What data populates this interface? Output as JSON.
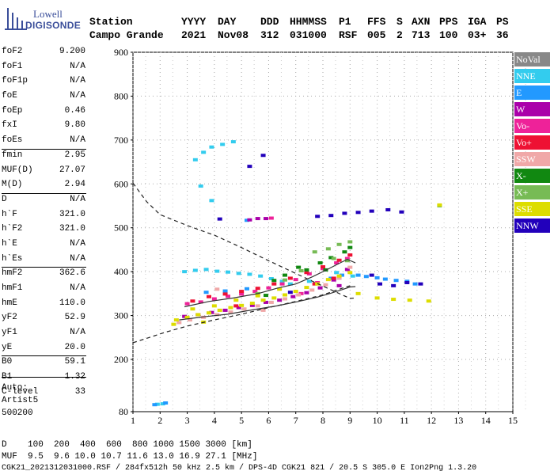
{
  "logo": {
    "line1": "Lowell",
    "line2": "DIGISONDE"
  },
  "header": {
    "row1": [
      "Station",
      "YYYY",
      "DAY",
      "DDD",
      "HHMMSS",
      "P1",
      "FFS",
      "S",
      "AXN",
      "PPS",
      "IGA",
      "PS"
    ],
    "row2": [
      "Campo Grande",
      "2021",
      "Nov08",
      "312",
      "031000",
      "RSF",
      "005",
      "2",
      "713",
      "100",
      "03+",
      "36"
    ]
  },
  "params": [
    {
      "label": "foF2",
      "value": "9.200"
    },
    {
      "label": "foF1",
      "value": "N/A"
    },
    {
      "label": "foF1p",
      "value": "N/A"
    },
    {
      "label": "foE",
      "value": "N/A"
    },
    {
      "label": "foEp",
      "value": "0.46"
    },
    {
      "label": "fxI",
      "value": "9.80"
    },
    {
      "label": "foEs",
      "value": "N/A"
    },
    {
      "label": "fmin",
      "value": "2.95"
    },
    {
      "label": "MUF(D)",
      "value": "27.07"
    },
    {
      "label": "M(D)",
      "value": "2.94"
    },
    {
      "label": "D",
      "value": "N/A"
    },
    {
      "label": "h`F",
      "value": "321.0"
    },
    {
      "label": "h`F2",
      "value": "321.0"
    },
    {
      "label": "h`E",
      "value": "N/A"
    },
    {
      "label": "h`Es",
      "value": "N/A"
    },
    {
      "label": "hmF2",
      "value": "362.6"
    },
    {
      "label": "hmF1",
      "value": "N/A"
    },
    {
      "label": "hmE",
      "value": "110.0"
    },
    {
      "label": "yF2",
      "value": "52.9"
    },
    {
      "label": "yF1",
      "value": "N/A"
    },
    {
      "label": "yE",
      "value": "20.0"
    },
    {
      "label": "B0",
      "value": "59.1"
    },
    {
      "label": "B1",
      "value": "1.32"
    },
    {
      "label": "C-level",
      "value": "33"
    }
  ],
  "auto": [
    "Auto:",
    "Artist5",
    "500200"
  ],
  "legend": [
    {
      "label": "NoVal",
      "color": "#888888"
    },
    {
      "label": "NNE",
      "color": "#33ccee"
    },
    {
      "label": "E",
      "color": "#2299ff"
    },
    {
      "label": "W",
      "color": "#aa00aa"
    },
    {
      "label": "Vo-",
      "color": "#ee2299"
    },
    {
      "label": "Vo+",
      "color": "#ee1133"
    },
    {
      "label": "SSW",
      "color": "#f0a8a8"
    },
    {
      "label": "X-",
      "color": "#118811"
    },
    {
      "label": "X+",
      "color": "#77bb55"
    },
    {
      "label": "SSE",
      "color": "#dddd00"
    },
    {
      "label": "NNW",
      "color": "#2200bb"
    }
  ],
  "bottom": {
    "d_row": "D    100  200  400  600  800 1000 1500 3000 [km]",
    "muf_row": "MUF  9.5  9.6 10.0 10.7 11.6 13.0 16.9 27.1 [MHz]",
    "footer": "CGK21_2021312031000.RSF / 284fx512h 50 kHz 2.5 km / DPS-4D CGK21 821 / 20.5 S 305.0 E Ion2Png 1.3.20"
  },
  "chart_data": {
    "type": "scatter",
    "title": "",
    "xlabel": "",
    "ylabel": "",
    "xlim": [
      1,
      15
    ],
    "ylim": [
      80,
      900
    ],
    "x_ticks": [
      "1",
      "2",
      "3",
      "4",
      "5",
      "6",
      "7",
      "8",
      "9",
      "10",
      "11",
      "12",
      "13",
      "14",
      "15"
    ],
    "y_ticks": [
      "80",
      "200",
      "300",
      "400",
      "500",
      "600",
      "700",
      "800",
      "900"
    ],
    "series": [
      {
        "key": "NNE",
        "color": "#33ccee",
        "points": [
          [
            2.9,
            400
          ],
          [
            3.3,
            403
          ],
          [
            3.7,
            405
          ],
          [
            4.1,
            401
          ],
          [
            4.5,
            399
          ],
          [
            4.9,
            396
          ],
          [
            5.3,
            394
          ],
          [
            5.7,
            390
          ],
          [
            6.1,
            384
          ],
          [
            6.5,
            378
          ],
          [
            6.8,
            372
          ],
          [
            3.3,
            655
          ],
          [
            3.6,
            672
          ],
          [
            3.9,
            684
          ],
          [
            4.3,
            690
          ],
          [
            4.7,
            696
          ],
          [
            3.9,
            562
          ],
          [
            3.5,
            595
          ],
          [
            1.9,
            97
          ],
          [
            2.1,
            98
          ],
          [
            9.1,
            390
          ],
          [
            8.5,
            398
          ],
          [
            7.5,
            378
          ]
        ]
      },
      {
        "key": "E",
        "color": "#2299ff",
        "points": [
          [
            9.3,
            392
          ],
          [
            9.6,
            389
          ],
          [
            10.0,
            386
          ],
          [
            10.3,
            383
          ],
          [
            10.7,
            380
          ],
          [
            11.1,
            378
          ],
          [
            11.4,
            372
          ],
          [
            8.3,
            385
          ],
          [
            8.7,
            392
          ],
          [
            5.2,
            361
          ],
          [
            4.4,
            356
          ],
          [
            3.7,
            353
          ],
          [
            1.8,
            96
          ],
          [
            2.2,
            100
          ],
          [
            5.2,
            517
          ]
        ]
      },
      {
        "key": "W",
        "color": "#aa00aa",
        "points": [
          [
            2.9,
            298
          ],
          [
            3.4,
            302
          ],
          [
            3.9,
            307
          ],
          [
            4.4,
            312
          ],
          [
            4.9,
            318
          ],
          [
            5.4,
            323
          ],
          [
            5.9,
            330
          ],
          [
            6.4,
            335
          ],
          [
            6.9,
            343
          ],
          [
            7.4,
            352
          ],
          [
            7.9,
            363
          ],
          [
            8.4,
            381
          ],
          [
            8.9,
            405
          ],
          [
            5.3,
            518
          ],
          [
            5.6,
            521
          ],
          [
            5.9,
            521
          ],
          [
            8.6,
            368
          ]
        ]
      },
      {
        "key": "Vo-",
        "color": "#ee2299",
        "points": [
          [
            3.0,
            327
          ],
          [
            3.5,
            331
          ],
          [
            4.0,
            338
          ],
          [
            4.5,
            344
          ],
          [
            5.0,
            349
          ],
          [
            5.5,
            355
          ],
          [
            6.0,
            363
          ],
          [
            6.5,
            372
          ],
          [
            7.0,
            382
          ],
          [
            7.5,
            395
          ],
          [
            8.0,
            407
          ],
          [
            8.5,
            420
          ],
          [
            8.9,
            430
          ],
          [
            6.1,
            522
          ],
          [
            7.2,
            350
          ],
          [
            7.8,
            375
          ]
        ]
      },
      {
        "key": "Vo+",
        "color": "#ee1133",
        "points": [
          [
            3.2,
            333
          ],
          [
            3.8,
            343
          ],
          [
            4.4,
            349
          ],
          [
            5.0,
            355
          ],
          [
            5.6,
            362
          ],
          [
            6.2,
            372
          ],
          [
            6.8,
            385
          ],
          [
            7.4,
            398
          ],
          [
            8.0,
            411
          ],
          [
            8.6,
            426
          ],
          [
            9.0,
            438
          ],
          [
            8.4,
            385
          ],
          [
            7.7,
            372
          ],
          [
            4.8,
            322
          ]
        ]
      },
      {
        "key": "SSW",
        "color": "#f0a8a8",
        "points": [
          [
            2.7,
            284
          ],
          [
            3.1,
            290
          ],
          [
            3.6,
            296
          ],
          [
            4.1,
            302
          ],
          [
            4.6,
            308
          ],
          [
            5.1,
            315
          ],
          [
            5.6,
            322
          ],
          [
            6.1,
            330
          ],
          [
            6.6,
            338
          ],
          [
            7.1,
            347
          ],
          [
            7.6,
            358
          ],
          [
            8.1,
            370
          ],
          [
            8.6,
            385
          ],
          [
            9.0,
            410
          ],
          [
            4.1,
            360
          ],
          [
            5.8,
            312
          ]
        ]
      },
      {
        "key": "X-",
        "color": "#118811",
        "points": [
          [
            7.4,
            404
          ],
          [
            7.9,
            420
          ],
          [
            8.3,
            432
          ],
          [
            8.8,
            445
          ],
          [
            9.0,
            455
          ],
          [
            6.6,
            392
          ],
          [
            7.1,
            410
          ],
          [
            6.2,
            380
          ],
          [
            8.1,
            404
          ],
          [
            5.9,
            346
          ]
        ]
      },
      {
        "key": "X+",
        "color": "#77bb55",
        "points": [
          [
            8.2,
            452
          ],
          [
            8.6,
            462
          ],
          [
            9.0,
            468
          ],
          [
            7.7,
            445
          ],
          [
            8.9,
            425
          ],
          [
            7.2,
            402
          ],
          [
            6.6,
            381
          ],
          [
            12.3,
            550
          ],
          [
            8.4,
            430
          ],
          [
            5.6,
            350
          ]
        ]
      },
      {
        "key": "SSE",
        "color": "#dddd00",
        "points": [
          [
            2.6,
            290
          ],
          [
            3.0,
            296
          ],
          [
            3.4,
            302
          ],
          [
            3.8,
            306
          ],
          [
            4.2,
            312
          ],
          [
            4.6,
            318
          ],
          [
            5.0,
            323
          ],
          [
            5.4,
            328
          ],
          [
            5.8,
            335
          ],
          [
            6.2,
            340
          ],
          [
            6.6,
            347
          ],
          [
            7.0,
            355
          ],
          [
            7.4,
            364
          ],
          [
            7.8,
            372
          ],
          [
            8.2,
            382
          ],
          [
            8.6,
            390
          ],
          [
            9.0,
            398
          ],
          [
            9.3,
            350
          ],
          [
            10.0,
            340
          ],
          [
            10.6,
            337
          ],
          [
            11.2,
            335
          ],
          [
            11.9,
            333
          ],
          [
            3.2,
            315
          ],
          [
            4.0,
            322
          ],
          [
            4.8,
            335
          ],
          [
            5.6,
            345
          ],
          [
            6.4,
            360
          ],
          [
            2.5,
            280
          ],
          [
            3.6,
            285
          ],
          [
            12.3,
            552
          ]
        ]
      },
      {
        "key": "NNW",
        "color": "#2200bb",
        "points": [
          [
            7.8,
            526
          ],
          [
            8.3,
            528
          ],
          [
            8.8,
            533
          ],
          [
            9.3,
            535
          ],
          [
            9.8,
            538
          ],
          [
            10.4,
            541
          ],
          [
            10.9,
            536
          ],
          [
            10.1,
            372
          ],
          [
            10.6,
            368
          ],
          [
            11.1,
            375
          ],
          [
            11.6,
            372
          ],
          [
            9.8,
            392
          ],
          [
            5.3,
            640
          ],
          [
            5.8,
            665
          ],
          [
            4.2,
            520
          ],
          [
            6.8,
            353
          ]
        ]
      }
    ],
    "curves": {
      "profile_upper": {
        "style": "dark-gray solid",
        "points": [
          [
            2.9,
            320
          ],
          [
            3.8,
            332
          ],
          [
            4.7,
            340
          ],
          [
            5.6,
            350
          ],
          [
            6.3,
            362
          ],
          [
            7.0,
            372
          ],
          [
            7.6,
            388
          ],
          [
            8.1,
            403
          ],
          [
            8.6,
            419
          ],
          [
            8.9,
            428
          ],
          [
            9.2,
            420
          ]
        ]
      },
      "profile_lower": {
        "style": "dark-gray solid",
        "points": [
          [
            2.7,
            290
          ],
          [
            3.6,
            297
          ],
          [
            4.5,
            303
          ],
          [
            5.4,
            313
          ],
          [
            6.3,
            322
          ],
          [
            7.1,
            332
          ],
          [
            7.8,
            342
          ],
          [
            8.3,
            351
          ],
          [
            8.7,
            359
          ],
          [
            9.0,
            365
          ],
          [
            9.2,
            366
          ]
        ]
      },
      "muf_dashed": {
        "style": "black dashed",
        "points": [
          [
            1.0,
            602
          ],
          [
            1.5,
            560
          ],
          [
            2.0,
            530
          ],
          [
            3.0,
            505
          ],
          [
            4.0,
            483
          ],
          [
            5.0,
            455
          ],
          [
            6.0,
            425
          ],
          [
            7.0,
            396
          ],
          [
            8.0,
            367
          ],
          [
            9.0,
            339
          ],
          [
            9.2,
            340
          ]
        ]
      },
      "lower_dashed": {
        "style": "black dashed",
        "points": [
          [
            1.0,
            238
          ],
          [
            1.6,
            250
          ],
          [
            2.2,
            262
          ],
          [
            3.0,
            276
          ],
          [
            4.0,
            290
          ],
          [
            5.0,
            303
          ],
          [
            6.0,
            318
          ],
          [
            7.0,
            332
          ],
          [
            8.0,
            347
          ],
          [
            8.6,
            360
          ],
          [
            9.0,
            368
          ]
        ]
      }
    }
  }
}
